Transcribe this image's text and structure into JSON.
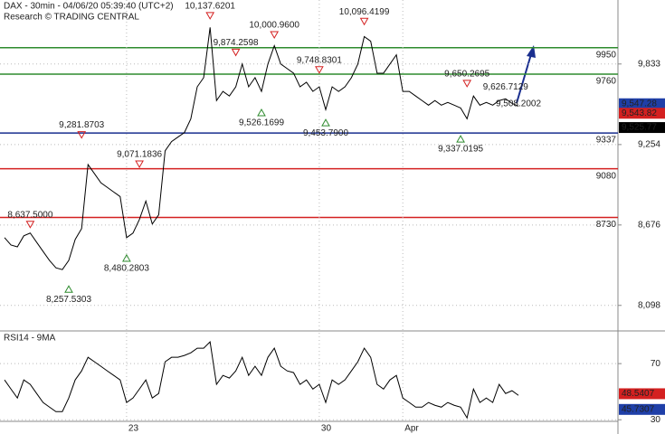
{
  "chart_data": [
    {
      "type": "line",
      "title": "DAX - 30min - 04/06/20 05:39:40 (UTC+2)",
      "subtitle": "Research © TRADING CENTRAL",
      "categories": [
        null,
        null,
        null,
        null,
        null,
        null,
        null,
        null,
        null,
        null,
        null,
        null,
        null,
        null,
        null,
        null,
        null,
        null,
        null,
        "23",
        null,
        null,
        null,
        null,
        null,
        null,
        null,
        null,
        null,
        null,
        null,
        null,
        null,
        null,
        null,
        null,
        null,
        null,
        null,
        null,
        null,
        null,
        null,
        null,
        null,
        null,
        null,
        null,
        null,
        "30",
        null,
        null,
        null,
        null,
        null,
        null,
        null,
        null,
        null,
        null,
        null,
        null,
        "Apr",
        null,
        null,
        null,
        null,
        null,
        null,
        null,
        null,
        null,
        null,
        null,
        null,
        null,
        null,
        null,
        null,
        null,
        null
      ],
      "values": [
        8585,
        8532,
        8519,
        8598,
        8618,
        8552,
        8486,
        8421,
        8368,
        8355,
        8421,
        8572,
        8650,
        9110,
        9045,
        8979,
        8946,
        8913,
        8880,
        8585,
        8618,
        8716,
        8848,
        8683,
        8749,
        9209,
        9275,
        9308,
        9340,
        9439,
        9669,
        9735,
        10096,
        9570,
        9636,
        9603,
        9669,
        9833,
        9669,
        9735,
        9636,
        9833,
        9965,
        9833,
        9800,
        9767,
        9669,
        9702,
        9636,
        9669,
        9505,
        9669,
        9636,
        9669,
        9735,
        9833,
        10030,
        9997,
        9767,
        9767,
        9833,
        9899,
        9636,
        9636,
        9603,
        9570,
        9537,
        9570,
        9537,
        9557,
        9537,
        9517,
        9439,
        9603,
        9537,
        9557,
        9537,
        9570,
        9583,
        9550,
        9530
      ],
      "color": "#000000",
      "ylim": [
        7921,
        10293
      ],
      "yticks": [
        {
          "value": 8098,
          "label": "8,098"
        },
        {
          "value": 8676,
          "label": "8,676"
        },
        {
          "value": 9254,
          "label": "9,254"
        },
        {
          "value": 9833,
          "label": "9,833"
        }
      ],
      "grid": true,
      "levels": [
        {
          "value": 9950,
          "color": "#2e8b2e"
        },
        {
          "value": 9760,
          "color": "#2e8b2e"
        },
        {
          "value": 9337,
          "color": "#1a2f8f"
        },
        {
          "value": 9080,
          "color": "#d42020"
        },
        {
          "value": 8730,
          "color": "#d42020"
        }
      ],
      "price_tags": [
        {
          "value": 9547.28,
          "label": "9,547.28",
          "color": "#1f3fa8"
        },
        {
          "value": 9543.82,
          "label": "9,543.82",
          "color": "#d42020"
        },
        {
          "value": 9525.77,
          "label": "9,525.77",
          "color": "#000000"
        }
      ],
      "annotations": [
        {
          "at": 32,
          "value": 10137.6201,
          "label": "10,137.6201",
          "marker": "down"
        },
        {
          "at": 36,
          "value": 9874.2598,
          "label": "9,874.2598",
          "marker": "down"
        },
        {
          "at": 42,
          "value": 10000.96,
          "label": "10,000.9600",
          "marker": "down"
        },
        {
          "at": 49,
          "value": 9748.8301,
          "label": "9,748.8301",
          "marker": "down"
        },
        {
          "at": 56,
          "value": 10096.4199,
          "label": "10,096.4199",
          "marker": "down"
        },
        {
          "at": 72,
          "value": 9650.2695,
          "label": "9,650.2695",
          "marker": "down"
        },
        {
          "at": 78,
          "value": 9626.7129,
          "label": "9,626.7129"
        },
        {
          "at": 12,
          "value": 9281.8703,
          "label": "9,281.8703",
          "marker": "down"
        },
        {
          "at": 21,
          "value": 9071.1836,
          "label": "9,071.1836",
          "marker": "down"
        },
        {
          "at": 4,
          "value": 8637.5,
          "label": "8,637.5000",
          "marker": "down"
        },
        {
          "at": 40,
          "value": 9526.1699,
          "label": "9,526.1699",
          "marker": "up"
        },
        {
          "at": 50,
          "value": 9453.79,
          "label": "9,453.7900",
          "marker": "up"
        },
        {
          "at": 80,
          "value": 9508.2002,
          "label": "9,508.2002"
        },
        {
          "at": 71,
          "value": 9337.0195,
          "label": "9,337.0195",
          "marker": "up"
        },
        {
          "at": 19,
          "value": 8480.2803,
          "label": "8,480.2803",
          "marker": "up"
        },
        {
          "at": 10,
          "value": 8257.5303,
          "label": "8,257.5303",
          "marker": "up"
        }
      ]
    },
    {
      "type": "line",
      "title": "RSI14 - 9MA",
      "values": [
        58.4,
        51.9,
        45.5,
        58.4,
        55.2,
        48.7,
        42.3,
        39.0,
        35.8,
        35.8,
        45.5,
        58.4,
        64.8,
        74.5,
        71.3,
        68.1,
        64.8,
        61.6,
        58.4,
        42.3,
        45.5,
        51.9,
        58.4,
        45.5,
        48.7,
        71.3,
        74.5,
        74.5,
        75.8,
        77.7,
        81.0,
        81.0,
        85.5,
        55.2,
        61.6,
        59.7,
        64.8,
        74.5,
        61.6,
        68.1,
        61.6,
        74.5,
        81.0,
        68.1,
        64.8,
        63.6,
        55.2,
        58.4,
        51.9,
        55.2,
        42.3,
        58.4,
        55.2,
        58.4,
        64.8,
        71.3,
        81.0,
        74.5,
        55.2,
        51.9,
        58.4,
        61.6,
        45.5,
        42.3,
        39.0,
        39.0,
        42.3,
        40.3,
        39.0,
        42.3,
        40.3,
        39.0,
        31.3,
        51.9,
        42.3,
        45.5,
        42.3,
        55.2,
        48.7,
        50.7,
        47.4
      ],
      "color": "#000000",
      "ylim": [
        25,
        92
      ],
      "yticks": [
        30,
        70
      ],
      "grid": true,
      "price_tags": [
        {
          "value": 48.5407,
          "label": "48.5407",
          "color": "#d42020"
        },
        {
          "value": 45.7307,
          "label": "45.7307",
          "color": "#1f3fa8"
        }
      ]
    }
  ]
}
